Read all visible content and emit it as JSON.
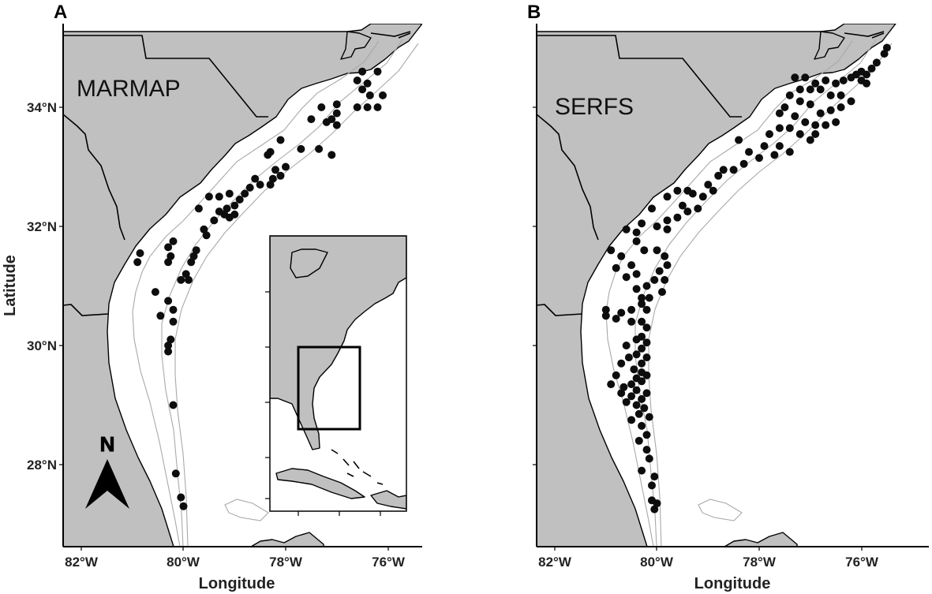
{
  "panels": [
    {
      "letter": "A",
      "label": "MARMAP"
    },
    {
      "letter": "B",
      "label": "SERFS"
    }
  ],
  "axes": {
    "x_title": "Longitude",
    "y_title": "Latitude",
    "x_ticks": [
      "82°W",
      "80°W",
      "78°W",
      "76°W"
    ],
    "y_ticks": [
      "34°N",
      "32°N",
      "30°N",
      "28°N"
    ]
  },
  "north_arrow": {
    "letter": "N"
  },
  "colors": {
    "land": "#c0c0c0",
    "ocean": "#ffffff",
    "isobath": "#a9a9a9",
    "points": "#0d0d0d"
  },
  "stations": {
    "MARMAP": [
      [
        -76.5,
        34.6
      ],
      [
        -76.2,
        34.6
      ],
      [
        -76.6,
        34.45
      ],
      [
        -76.4,
        34.4
      ],
      [
        -76.5,
        34.3
      ],
      [
        -76.35,
        34.2
      ],
      [
        -76.1,
        34.2
      ],
      [
        -76.6,
        34.0
      ],
      [
        -76.4,
        34.0
      ],
      [
        -76.2,
        34.0
      ],
      [
        -77.0,
        34.05
      ],
      [
        -77.0,
        33.9
      ],
      [
        -77.3,
        34.0
      ],
      [
        -77.1,
        33.8
      ],
      [
        -77.5,
        33.8
      ],
      [
        -77.2,
        33.75
      ],
      [
        -77.0,
        33.7
      ],
      [
        -77.35,
        33.3
      ],
      [
        -77.7,
        33.3
      ],
      [
        -77.1,
        33.2
      ],
      [
        -78.1,
        33.45
      ],
      [
        -78.3,
        33.25
      ],
      [
        -78.35,
        33.2
      ],
      [
        -78.0,
        33.0
      ],
      [
        -78.2,
        32.95
      ],
      [
        -78.1,
        32.85
      ],
      [
        -78.25,
        32.8
      ],
      [
        -78.3,
        32.7
      ],
      [
        -78.5,
        32.7
      ],
      [
        -78.7,
        32.65
      ],
      [
        -78.6,
        32.8
      ],
      [
        -79.1,
        32.55
      ],
      [
        -78.8,
        32.55
      ],
      [
        -78.9,
        32.45
      ],
      [
        -79.0,
        32.35
      ],
      [
        -79.15,
        32.3
      ],
      [
        -79.3,
        32.25
      ],
      [
        -79.2,
        32.2
      ],
      [
        -79.0,
        32.2
      ],
      [
        -79.1,
        32.15
      ],
      [
        -79.5,
        32.5
      ],
      [
        -79.3,
        32.5
      ],
      [
        -79.7,
        32.3
      ],
      [
        -79.4,
        32.1
      ],
      [
        -79.6,
        31.95
      ],
      [
        -79.55,
        31.85
      ],
      [
        -79.75,
        31.6
      ],
      [
        -79.8,
        31.5
      ],
      [
        -79.85,
        31.4
      ],
      [
        -79.95,
        31.2
      ],
      [
        -80.05,
        31.1
      ],
      [
        -79.9,
        31.1
      ],
      [
        -80.2,
        31.75
      ],
      [
        -80.3,
        31.65
      ],
      [
        -80.25,
        31.5
      ],
      [
        -80.3,
        31.4
      ],
      [
        -80.85,
        31.55
      ],
      [
        -80.9,
        31.4
      ],
      [
        -80.55,
        30.9
      ],
      [
        -80.3,
        30.75
      ],
      [
        -80.2,
        30.6
      ],
      [
        -80.45,
        30.5
      ],
      [
        -80.2,
        30.4
      ],
      [
        -80.25,
        30.1
      ],
      [
        -80.3,
        30.0
      ],
      [
        -80.3,
        29.9
      ],
      [
        -80.2,
        29.0
      ],
      [
        -80.15,
        27.85
      ],
      [
        -80.05,
        27.45
      ],
      [
        -80.0,
        27.3
      ]
    ],
    "SERFS": [
      [
        -75.5,
        35.0
      ],
      [
        -75.55,
        34.9
      ],
      [
        -75.7,
        34.75
      ],
      [
        -75.8,
        34.65
      ],
      [
        -75.9,
        34.55
      ],
      [
        -76.0,
        34.6
      ],
      [
        -76.1,
        34.55
      ],
      [
        -76.0,
        34.45
      ],
      [
        -75.9,
        34.4
      ],
      [
        -76.2,
        34.5
      ],
      [
        -76.35,
        34.45
      ],
      [
        -76.5,
        34.4
      ],
      [
        -76.7,
        34.45
      ],
      [
        -76.9,
        34.4
      ],
      [
        -77.1,
        34.5
      ],
      [
        -77.3,
        34.5
      ],
      [
        -77.2,
        34.3
      ],
      [
        -77.0,
        34.3
      ],
      [
        -76.8,
        34.3
      ],
      [
        -76.6,
        34.2
      ],
      [
        -76.4,
        34.2
      ],
      [
        -76.2,
        34.1
      ],
      [
        -76.4,
        34.0
      ],
      [
        -76.6,
        33.95
      ],
      [
        -76.8,
        33.9
      ],
      [
        -77.0,
        34.05
      ],
      [
        -77.2,
        34.1
      ],
      [
        -77.4,
        34.2
      ],
      [
        -77.5,
        34.0
      ],
      [
        -77.6,
        33.9
      ],
      [
        -77.3,
        33.85
      ],
      [
        -77.1,
        33.75
      ],
      [
        -76.9,
        33.7
      ],
      [
        -76.7,
        33.7
      ],
      [
        -76.5,
        33.75
      ],
      [
        -76.9,
        33.55
      ],
      [
        -77.0,
        33.45
      ],
      [
        -77.2,
        33.55
      ],
      [
        -77.4,
        33.65
      ],
      [
        -77.6,
        33.65
      ],
      [
        -77.8,
        33.55
      ],
      [
        -77.9,
        33.35
      ],
      [
        -77.6,
        33.35
      ],
      [
        -77.4,
        33.25
      ],
      [
        -77.7,
        33.2
      ],
      [
        -78.0,
        33.15
      ],
      [
        -78.2,
        33.25
      ],
      [
        -78.4,
        33.45
      ],
      [
        -78.3,
        33.05
      ],
      [
        -78.5,
        32.95
      ],
      [
        -78.7,
        32.95
      ],
      [
        -78.8,
        32.85
      ],
      [
        -79.0,
        32.7
      ],
      [
        -78.9,
        32.6
      ],
      [
        -79.1,
        32.5
      ],
      [
        -79.3,
        32.55
      ],
      [
        -79.4,
        32.6
      ],
      [
        -79.6,
        32.6
      ],
      [
        -79.8,
        32.5
      ],
      [
        -79.5,
        32.35
      ],
      [
        -79.4,
        32.25
      ],
      [
        -79.2,
        32.3
      ],
      [
        -79.6,
        32.15
      ],
      [
        -79.8,
        32.1
      ],
      [
        -79.8,
        31.95
      ],
      [
        -80.1,
        32.3
      ],
      [
        -80.0,
        32.0
      ],
      [
        -80.3,
        32.05
      ],
      [
        -80.4,
        31.9
      ],
      [
        -80.6,
        31.95
      ],
      [
        -80.4,
        31.75
      ],
      [
        -80.25,
        31.6
      ],
      [
        -80.0,
        31.6
      ],
      [
        -79.85,
        31.5
      ],
      [
        -79.8,
        31.35
      ],
      [
        -79.95,
        31.25
      ],
      [
        -80.05,
        31.1
      ],
      [
        -80.2,
        31.0
      ],
      [
        -80.4,
        31.2
      ],
      [
        -80.5,
        31.35
      ],
      [
        -80.7,
        31.5
      ],
      [
        -80.9,
        31.6
      ],
      [
        -80.8,
        31.3
      ],
      [
        -80.6,
        31.15
      ],
      [
        -80.4,
        30.95
      ],
      [
        -80.3,
        30.8
      ],
      [
        -80.3,
        30.7
      ],
      [
        -80.5,
        30.6
      ],
      [
        -80.7,
        30.55
      ],
      [
        -81.0,
        30.6
      ],
      [
        -81.0,
        30.5
      ],
      [
        -80.8,
        30.45
      ],
      [
        -80.5,
        30.4
      ],
      [
        -80.3,
        30.4
      ],
      [
        -80.2,
        30.3
      ],
      [
        -80.3,
        30.15
      ],
      [
        -80.4,
        30.1
      ],
      [
        -80.2,
        30.05
      ],
      [
        -80.3,
        29.95
      ],
      [
        -80.4,
        29.85
      ],
      [
        -80.2,
        29.8
      ],
      [
        -80.3,
        29.7
      ],
      [
        -80.45,
        29.6
      ],
      [
        -80.3,
        29.55
      ],
      [
        -80.2,
        29.5
      ],
      [
        -80.4,
        29.45
      ],
      [
        -80.3,
        29.4
      ],
      [
        -80.5,
        29.35
      ],
      [
        -80.65,
        29.3
      ],
      [
        -80.4,
        29.25
      ],
      [
        -80.2,
        29.2
      ],
      [
        -80.3,
        29.1
      ],
      [
        -80.5,
        29.15
      ],
      [
        -80.6,
        29.05
      ],
      [
        -80.4,
        29.0
      ],
      [
        -80.25,
        28.95
      ],
      [
        -80.35,
        28.85
      ],
      [
        -80.15,
        28.8
      ],
      [
        -80.5,
        28.75
      ],
      [
        -80.3,
        28.65
      ],
      [
        -80.2,
        28.5
      ],
      [
        -80.35,
        28.4
      ],
      [
        -80.2,
        28.25
      ],
      [
        -80.15,
        28.1
      ],
      [
        -80.3,
        27.9
      ],
      [
        -80.05,
        27.8
      ],
      [
        -80.1,
        27.65
      ],
      [
        -80.1,
        27.4
      ],
      [
        -80.05,
        27.25
      ],
      [
        -80.0,
        27.35
      ],
      [
        -80.7,
        29.7
      ],
      [
        -80.8,
        29.5
      ],
      [
        -80.9,
        29.35
      ],
      [
        -80.7,
        29.2
      ],
      [
        -80.55,
        29.8
      ],
      [
        -80.6,
        30.0
      ],
      [
        -80.2,
        30.6
      ],
      [
        -80.15,
        30.8
      ],
      [
        -79.9,
        30.9
      ],
      [
        -79.85,
        31.1
      ]
    ]
  }
}
